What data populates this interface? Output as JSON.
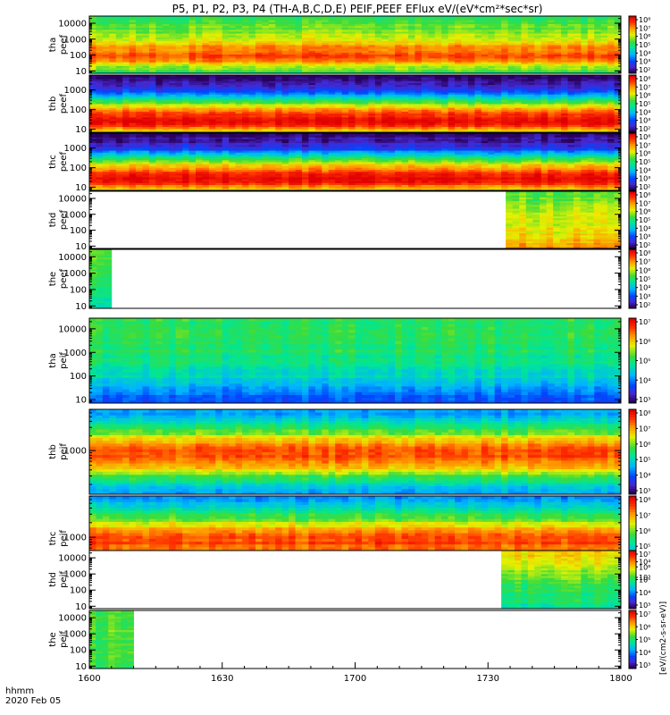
{
  "chart_data": {
    "type": "heatmap",
    "title": "P5, P1, P2, P3, P4 (TH-A,B,C,D,E) PEIF,PEEF EFlux eV/(eV*cm²*sec*sr)",
    "x_axis": {
      "ticks": [
        "1600",
        "1630",
        "1700",
        "1730",
        "1800"
      ],
      "label_line1": "hhmm",
      "label_line2": "2020 Feb 05",
      "range": [
        "16:00",
        "18:00"
      ]
    },
    "colorbar_label": "[eV/(cm2-s-sr-eV)]",
    "panels": [
      {
        "probe": "tha",
        "product": "peef",
        "y_label_1": "tha",
        "y_label_2": "peef",
        "yticks": [
          "10",
          "100",
          "1000",
          "10000"
        ],
        "cb_ticks": [
          "10⁸",
          "10⁷",
          "10⁶",
          "10⁵",
          "10⁴",
          "10³",
          "10²"
        ],
        "data_coverage": [
          "16:00",
          "18:00"
        ],
        "spectrum": [
          [
            6,
            0.45
          ],
          [
            15,
            0.6
          ],
          [
            40,
            0.8
          ],
          [
            100,
            0.88
          ],
          [
            300,
            0.8
          ],
          [
            1000,
            0.68
          ],
          [
            4000,
            0.58
          ],
          [
            20000,
            0.52
          ]
        ]
      },
      {
        "probe": "thb",
        "product": "peef",
        "y_label_1": "thb",
        "y_label_2": "peef",
        "yticks": [
          "10",
          "100",
          "1000"
        ],
        "cb_ticks": [
          "10⁸",
          "10⁷",
          "10⁶",
          "10⁵",
          "10⁴",
          "10³",
          "10²"
        ],
        "data_coverage": [
          "16:00",
          "18:00"
        ],
        "spectrum": [
          [
            6,
            0.62
          ],
          [
            15,
            0.9
          ],
          [
            30,
            1.0
          ],
          [
            60,
            0.9
          ],
          [
            150,
            0.7
          ],
          [
            400,
            0.42
          ],
          [
            1000,
            0.15
          ],
          [
            3000,
            0.05
          ],
          [
            5000,
            0.0
          ]
        ]
      },
      {
        "probe": "thc",
        "product": "peef",
        "y_label_1": "thc",
        "y_label_2": "peef",
        "yticks": [
          "10",
          "100",
          "1000"
        ],
        "cb_ticks": [
          "10⁸",
          "10⁷",
          "10⁶",
          "10⁵",
          "10⁴",
          "10³",
          "10²"
        ],
        "data_coverage": [
          "16:00",
          "18:00"
        ],
        "spectrum": [
          [
            6,
            0.62
          ],
          [
            15,
            0.9
          ],
          [
            30,
            1.0
          ],
          [
            60,
            0.9
          ],
          [
            150,
            0.7
          ],
          [
            400,
            0.42
          ],
          [
            1000,
            0.15
          ],
          [
            3000,
            0.05
          ],
          [
            5000,
            0.0
          ]
        ]
      },
      {
        "probe": "thd",
        "product": "peef",
        "y_label_1": "thd",
        "y_label_2": "peef",
        "yticks": [
          "10",
          "100",
          "1000",
          "10000"
        ],
        "cb_ticks": [
          "10⁸",
          "10⁷",
          "10⁶",
          "10⁵",
          "10⁴",
          "10³",
          "10²"
        ],
        "data_coverage": [
          "17:34",
          "18:00"
        ],
        "spectrum": [
          [
            6,
            0.8
          ],
          [
            20,
            0.75
          ],
          [
            100,
            0.68
          ],
          [
            1000,
            0.65
          ],
          [
            5000,
            0.6
          ],
          [
            20000,
            0.55
          ]
        ]
      },
      {
        "probe": "the",
        "product": "peef",
        "y_label_1": "the",
        "y_label_2": "peef",
        "yticks": [
          "10",
          "100",
          "1000",
          "10000"
        ],
        "cb_ticks": [
          "10⁸",
          "10⁷",
          "10⁶",
          "10⁵",
          "10⁴",
          "10³",
          "10²"
        ],
        "data_coverage": [
          "16:00",
          "16:05"
        ],
        "spectrum": [
          [
            6,
            0.4
          ],
          [
            20,
            0.45
          ],
          [
            100,
            0.5
          ],
          [
            1000,
            0.55
          ],
          [
            20000,
            0.6
          ]
        ]
      },
      {
        "probe": "tha",
        "product": "peif",
        "y_label_1": "tha",
        "y_label_2": "peif",
        "yticks": [
          "10",
          "100",
          "1000",
          "10000"
        ],
        "cb_ticks": [
          "10⁷",
          "10⁶",
          "10⁵",
          "10⁴",
          "10³"
        ],
        "data_coverage": [
          "16:00",
          "18:00"
        ],
        "spectrum": [
          [
            6,
            0.15
          ],
          [
            20,
            0.28
          ],
          [
            60,
            0.38
          ],
          [
            300,
            0.45
          ],
          [
            1000,
            0.5
          ],
          [
            3000,
            0.52
          ],
          [
            20000,
            0.5
          ]
        ]
      },
      {
        "probe": "thb",
        "product": "peif",
        "y_label_1": "thb",
        "y_label_2": "peif",
        "yticks": [
          "1000"
        ],
        "cb_ticks": [
          "10⁸",
          "10⁷",
          "10⁶",
          "10⁵",
          "10⁴",
          "10³"
        ],
        "data_coverage": [
          "16:00",
          "18:00"
        ],
        "spectrum": [
          [
            150,
            0.3
          ],
          [
            300,
            0.55
          ],
          [
            500,
            0.78
          ],
          [
            800,
            0.9
          ],
          [
            1200,
            0.85
          ],
          [
            2000,
            0.65
          ],
          [
            3500,
            0.45
          ],
          [
            6000,
            0.3
          ]
        ]
      },
      {
        "probe": "thc",
        "product": "peif",
        "y_label_1": "thc",
        "y_label_2": "peif",
        "yticks": [
          "1000"
        ],
        "cb_ticks": [
          "10⁸",
          "10⁷",
          "10⁶",
          "10⁵",
          "10⁴",
          "10³"
        ],
        "data_coverage": [
          "16:00",
          "18:00"
        ],
        "spectrum": [
          [
            150,
            0.3
          ],
          [
            300,
            0.55
          ],
          [
            500,
            0.78
          ],
          [
            800,
            0.9
          ],
          [
            1200,
            0.85
          ],
          [
            2000,
            0.65
          ],
          [
            3500,
            0.45
          ],
          [
            6000,
            0.3
          ]
        ]
      },
      {
        "probe": "thd",
        "product": "peif",
        "y_label_1": "thd",
        "y_label_2": "peif",
        "yticks": [
          "10",
          "100",
          "1000",
          "10000"
        ],
        "cb_ticks": [
          "10⁷",
          "10⁶",
          "10⁵",
          "10⁴",
          "10³"
        ],
        "data_coverage": [
          "17:33",
          "18:00"
        ],
        "spectrum": [
          [
            6,
            0.45
          ],
          [
            30,
            0.48
          ],
          [
            200,
            0.52
          ],
          [
            1000,
            0.6
          ],
          [
            5000,
            0.68
          ],
          [
            20000,
            0.72
          ]
        ]
      },
      {
        "probe": "the",
        "product": "peif",
        "y_label_1": "the",
        "y_label_2": "peif",
        "yticks": [
          "10",
          "100",
          "1000",
          "10000"
        ],
        "cb_ticks": [
          "10⁷",
          "10⁶",
          "10⁵",
          "10⁴",
          "10³"
        ],
        "data_coverage": [
          "16:00",
          "16:10"
        ],
        "spectrum": [
          [
            6,
            0.52
          ],
          [
            100,
            0.55
          ],
          [
            1000,
            0.56
          ],
          [
            20000,
            0.55
          ]
        ]
      }
    ]
  }
}
